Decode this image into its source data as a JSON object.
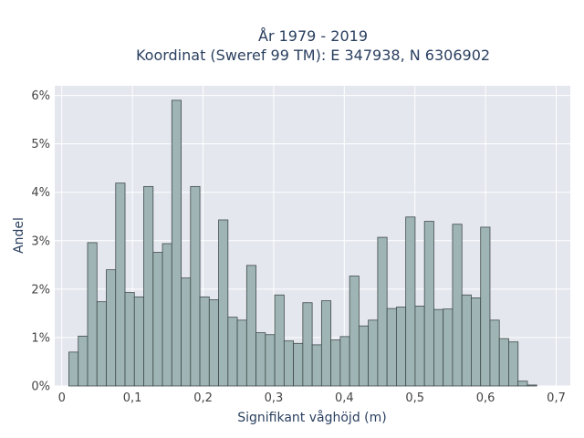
{
  "chart_data": {
    "type": "bar",
    "title_lines": [
      "År 1979 - 2019",
      "Koordinat (Sweref 99 TM): E 347938, N 6306902"
    ],
    "xlabel": "Signifikant våghöjd (m)",
    "ylabel": "Andel",
    "x_ticks": [
      {
        "value": 0,
        "label": "0"
      },
      {
        "value": 0.1,
        "label": "0,1"
      },
      {
        "value": 0.2,
        "label": "0,2"
      },
      {
        "value": 0.3,
        "label": "0,3"
      },
      {
        "value": 0.4,
        "label": "0,4"
      },
      {
        "value": 0.5,
        "label": "0,5"
      },
      {
        "value": 0.6,
        "label": "0,6"
      },
      {
        "value": 0.7,
        "label": "0,7"
      }
    ],
    "y_ticks": [
      {
        "value": 0,
        "label": "0%"
      },
      {
        "value": 1,
        "label": "1%"
      },
      {
        "value": 2,
        "label": "2%"
      },
      {
        "value": 3,
        "label": "3%"
      },
      {
        "value": 4,
        "label": "4%"
      },
      {
        "value": 5,
        "label": "5%"
      },
      {
        "value": 6,
        "label": "6%"
      }
    ],
    "xlim": [
      -0.01,
      0.72
    ],
    "ylim": [
      0,
      6.2
    ],
    "bin_start": 0.01,
    "bin_width": 0.01325,
    "values": [
      0.7,
      1.03,
      2.96,
      1.74,
      2.4,
      4.19,
      1.93,
      1.84,
      4.12,
      2.76,
      2.94,
      5.9,
      2.23,
      4.12,
      1.84,
      1.78,
      3.43,
      1.42,
      1.36,
      2.49,
      1.1,
      1.06,
      1.88,
      0.93,
      0.88,
      1.72,
      0.85,
      1.76,
      0.95,
      1.02,
      2.27,
      1.24,
      1.36,
      3.07,
      1.6,
      1.63,
      3.49,
      1.65,
      3.4,
      1.58,
      1.59,
      3.34,
      1.88,
      1.82,
      3.28,
      1.36,
      0.98,
      0.91,
      0.1,
      0.02
    ],
    "grid": true,
    "colors": {
      "bar_fill": "#9fb5b5",
      "bar_stroke": "#3f4a4a",
      "plot_bg": "#e5e7ef",
      "grid": "#ffffff"
    }
  }
}
